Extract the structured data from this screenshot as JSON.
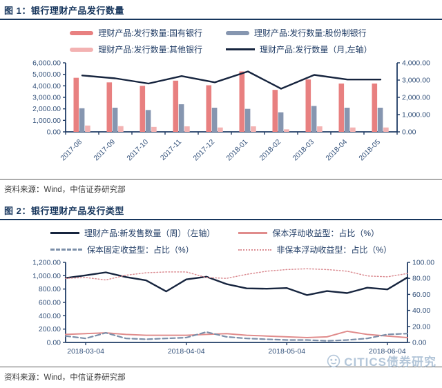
{
  "colors": {
    "title_text": "#17365D",
    "axis": "#1F3B64",
    "tick_text": "#33517A",
    "legend_text": "#1F3B64",
    "divider": "#595959",
    "source_text": "#3A3A3A",
    "watermark": "#B3C6D9",
    "state_owned_bar": "#E88080",
    "joint_stock_bar": "#8696B0",
    "other_bar": "#F3B2B2",
    "navy_line": "#16243E",
    "pp_floating_line": "#E08C8C",
    "pp_fixed_line": "#7C8FA9",
    "npp_floating_line": "#DB8C92"
  },
  "figure1": {
    "title": "图 1：银行理财产品发行数量",
    "source": "资料来源：Wind，中信证券研究部"
  },
  "figure2": {
    "title": "图 2：银行理财产品发行类型",
    "source": "资料来源：Wind，中信证券研究部"
  },
  "watermark": {
    "text": "CITICS债券研究"
  },
  "chart_data": [
    {
      "id": "bank-wmp-issuance-count",
      "type": "bar",
      "title": "银行理财产品发行数量",
      "xlabel": "",
      "ylabel": "",
      "grid": false,
      "legend_position": "top",
      "categories": [
        "2017-08",
        "2017-09",
        "2017-10",
        "2017-11",
        "2017-12",
        "2018-01",
        "2018-02",
        "2018-03",
        "2018-04",
        "2018-05"
      ],
      "left_axis": {
        "min": 0,
        "max": 6000,
        "tick_labels": [
          "0.00",
          "1,000.00",
          "2,000.00",
          "3,000.00",
          "4,000.00",
          "5,000.00",
          "6,000.00"
        ]
      },
      "right_axis": {
        "min": 0,
        "max": 4000,
        "tick_labels": [
          "0.00",
          "1,000.00",
          "2,000.00",
          "3,000.00",
          "4,000.00"
        ]
      },
      "series": [
        {
          "name": "理财产品:发行数量:国有银行",
          "type": "bar",
          "axis": "left",
          "color": "#E88080",
          "values": [
            4700,
            4300,
            4000,
            4450,
            4050,
            5250,
            3650,
            4550,
            4200,
            4200
          ]
        },
        {
          "name": "理财产品:发行数量:股份制银行",
          "type": "bar",
          "axis": "left",
          "color": "#8696B0",
          "values": [
            2050,
            2100,
            1900,
            2400,
            2100,
            2000,
            1700,
            2250,
            2100,
            2100
          ]
        },
        {
          "name": "理财产品:发行数量:其他银行",
          "type": "bar",
          "axis": "left",
          "color": "#F3B2B2",
          "values": [
            550,
            500,
            430,
            480,
            380,
            480,
            220,
            480,
            380,
            380
          ]
        },
        {
          "name": "理财产品:发行数量（月,左轴）",
          "type": "line",
          "axis": "left",
          "style": "solid",
          "width": 2.4,
          "color": "#16243E",
          "values": [
            4900,
            4650,
            4200,
            4850,
            4300,
            5250,
            3750,
            4950,
            4550,
            4550
          ]
        }
      ]
    },
    {
      "id": "bank-wmp-issuance-type",
      "type": "line",
      "title": "银行理财产品发行类型",
      "xlabel": "",
      "ylabel": "",
      "grid": false,
      "legend_position": "top",
      "x_tick_labels": [
        "2018-03-04",
        "2018-04-04",
        "2018-05-04",
        "2018-06-04"
      ],
      "left_axis": {
        "min": 0,
        "max": 1200,
        "tick_labels": [
          "0.00",
          "200.00",
          "400.00",
          "600.00",
          "800.00",
          "1,000.00",
          "1,200.00"
        ]
      },
      "right_axis": {
        "min": 0,
        "max": 100,
        "tick_labels": [
          "0.00",
          "20.00",
          "40.00",
          "60.00",
          "80.00",
          "100.00"
        ]
      },
      "series": [
        {
          "name": "理财产品:新发售数量（周）（左轴）",
          "type": "line",
          "axis": "left",
          "style": "solid",
          "width": 2.4,
          "color": "#16243E",
          "values": [
            965,
            1005,
            1050,
            980,
            930,
            765,
            945,
            985,
            875,
            810,
            805,
            815,
            710,
            770,
            740,
            820,
            795,
            975
          ]
        },
        {
          "name": "保本浮动收益型：占比（%）",
          "type": "line",
          "axis": "right",
          "style": "solid",
          "width": 2,
          "color": "#E08C8C",
          "values": [
            10,
            11,
            12,
            10,
            9,
            9,
            9,
            10,
            11,
            9,
            8,
            7,
            6,
            7,
            14,
            10,
            8,
            6
          ]
        },
        {
          "name": "保本固定收益型：占比（%）",
          "type": "line",
          "axis": "right",
          "style": "dashed",
          "width": 2.2,
          "color": "#7C8FA9",
          "values": [
            8,
            5,
            12,
            5,
            4,
            5,
            6,
            13,
            7,
            5,
            4,
            3,
            3,
            2,
            3,
            5,
            10,
            11
          ]
        },
        {
          "name": "非保本浮动收益型：占比（%）",
          "type": "line",
          "axis": "right",
          "style": "dotted",
          "width": 1.5,
          "color": "#DB8C92",
          "values": [
            80,
            81,
            78,
            84,
            87,
            88,
            88,
            81,
            80,
            85,
            89,
            91,
            92,
            91,
            89,
            83,
            82,
            86
          ]
        }
      ]
    }
  ]
}
